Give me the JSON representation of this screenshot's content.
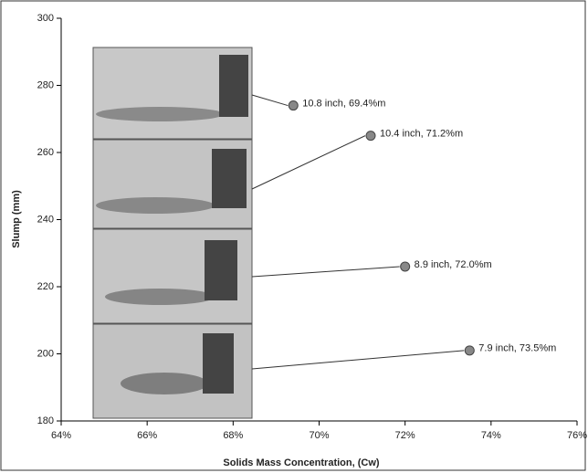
{
  "chart_data": {
    "type": "scatter",
    "x_label": "Solids Mass Concentration, (Cw)",
    "y_label": "Slump (mm)",
    "series": [
      {
        "x": [
          69.4,
          71.2,
          72.0,
          73.5
        ],
        "values": [
          274,
          265,
          226,
          201
        ],
        "color": "#888888",
        "value_labels": [
          "10.8 inch, 69.4%m",
          "10.4 inch, 71.2%m",
          "8.9 inch, 72.0%m",
          "7.9 inch, 73.5%m"
        ]
      }
    ],
    "xlim": [
      64,
      76
    ],
    "xticks": [
      {
        "value": 64,
        "label": "64%"
      },
      {
        "value": 66,
        "label": "66%"
      },
      {
        "value": 68,
        "label": "68%"
      },
      {
        "value": 70,
        "label": "70%"
      },
      {
        "value": 72,
        "label": "72%"
      },
      {
        "value": 74,
        "label": "74%"
      },
      {
        "value": 76,
        "label": "76%"
      }
    ],
    "ylim": [
      180,
      300
    ],
    "yticks": [
      180,
      200,
      220,
      240,
      260,
      280,
      300
    ]
  }
}
